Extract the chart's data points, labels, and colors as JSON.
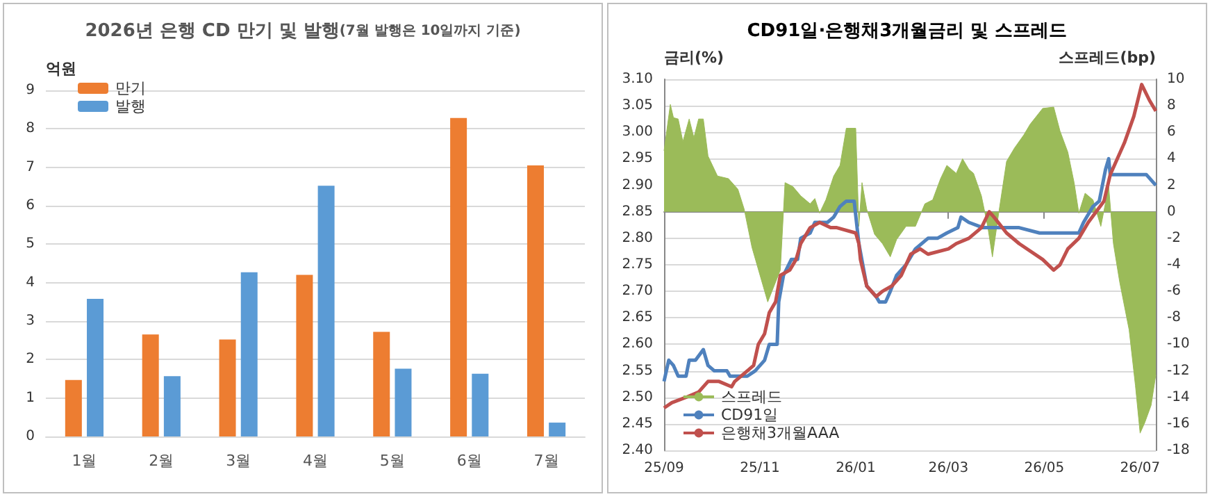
{
  "chart_data": [
    {
      "type": "bar",
      "title": "2026년 은행 CD 만기 및 발행",
      "subtitle": "(7월 발행은 10일까지 기준)",
      "ylabel": "억원",
      "categories": [
        "1월",
        "2월",
        "3월",
        "4월",
        "5월",
        "6월",
        "7월"
      ],
      "series": [
        {
          "name": "만기",
          "color": "#ed7d31",
          "values": [
            1.47,
            2.65,
            2.52,
            4.2,
            2.72,
            8.28,
            7.05
          ]
        },
        {
          "name": "발행",
          "color": "#5b9bd5",
          "values": [
            3.58,
            1.57,
            4.27,
            6.52,
            1.76,
            1.63,
            0.36
          ]
        }
      ],
      "ylim": [
        0,
        9
      ],
      "yticks": [
        0,
        1,
        2,
        3,
        4,
        5,
        6,
        7,
        8,
        9
      ],
      "grid": "y",
      "legend": "top left"
    },
    {
      "type": "line",
      "title": "CD91일·은행채3개월금리 및 스프레드",
      "ylabel": "금리(%)",
      "y2label": "스프레드(bp)",
      "marker": "none",
      "series": [
        {
          "name": "스프레드",
          "type": "area",
          "axis": "y2",
          "color": "#9bbb59",
          "x": [
            "2025-09-01",
            "2025-09-05",
            "2025-09-07",
            "2025-09-10",
            "2025-09-13",
            "2025-09-17",
            "2025-09-20",
            "2025-09-23",
            "2025-09-26",
            "2025-09-29",
            "2025-10-05",
            "2025-10-12",
            "2025-10-18",
            "2025-10-22",
            "2025-10-27",
            "2025-11-06",
            "2025-11-14",
            "2025-11-17",
            "2025-11-22",
            "2025-11-27",
            "2025-12-03",
            "2025-12-06",
            "2025-12-09",
            "2025-12-13",
            "2025-12-18",
            "2025-12-22",
            "2025-12-26",
            "2026-01-01",
            "2026-01-03",
            "2026-01-05",
            "2026-01-08",
            "2026-01-13",
            "2026-01-18",
            "2026-01-23",
            "2026-01-27",
            "2026-02-02",
            "2026-02-08",
            "2026-02-14",
            "2026-02-19",
            "2026-02-24",
            "2026-02-28",
            "2026-03-06",
            "2026-03-10",
            "2026-03-14",
            "2026-03-17",
            "2026-03-22",
            "2026-03-26",
            "2026-03-29",
            "2026-04-02",
            "2026-04-07",
            "2026-04-12",
            "2026-04-18",
            "2026-04-22",
            "2026-04-30",
            "2026-05-07",
            "2026-05-11",
            "2026-05-16",
            "2026-05-20",
            "2026-05-23",
            "2026-05-27",
            "2026-06-01",
            "2026-06-06",
            "2026-06-11",
            "2026-06-14",
            "2026-06-18",
            "2026-06-24",
            "2026-06-28",
            "2026-07-01",
            "2026-07-04",
            "2026-07-08",
            "2026-07-11"
          ],
          "values": [
            4.6,
            8.1,
            7.1,
            7.0,
            5.3,
            7.0,
            5.6,
            7.0,
            7.0,
            4.2,
            2.7,
            2.5,
            1.7,
            0.2,
            -2.7,
            -6.8,
            -4.4,
            2.2,
            1.9,
            1.2,
            0.6,
            1.0,
            -0.1,
            0.9,
            2.7,
            3.5,
            6.3,
            6.3,
            -1.1,
            2.2,
            0.2,
            -1.7,
            -2.4,
            -3.4,
            -2.1,
            -1.1,
            -1.1,
            0.6,
            0.9,
            2.5,
            3.5,
            2.9,
            4.0,
            3.2,
            2.9,
            1.2,
            -1.1,
            -3.4,
            -0.1,
            3.8,
            4.8,
            5.8,
            6.6,
            7.8,
            7.9,
            6.1,
            4.5,
            2.2,
            -0.1,
            1.4,
            0.9,
            -1.1,
            1.9,
            -2.4,
            -5.3,
            -8.9,
            -13.1,
            -16.7,
            -15.9,
            -14.6,
            -12.3
          ]
        },
        {
          "name": "CD91일",
          "color": "#4f81bd",
          "x": [
            "2025-09-01",
            "2025-09-04",
            "2025-09-07",
            "2025-09-10",
            "2025-09-15",
            "2025-09-17",
            "2025-09-21",
            "2025-09-26",
            "2025-09-29",
            "2025-10-03",
            "2025-10-11",
            "2025-10-13",
            "2025-10-24",
            "2025-10-29",
            "2025-11-04",
            "2025-11-07",
            "2025-11-12",
            "2025-11-13",
            "2025-11-16",
            "2025-11-21",
            "2025-11-25",
            "2025-11-27",
            "2025-12-03",
            "2025-12-06",
            "2025-12-14",
            "2025-12-18",
            "2025-12-22",
            "2025-12-26",
            "2025-12-31",
            "2026-01-03",
            "2026-01-08",
            "2026-01-14",
            "2026-01-16",
            "2026-01-20",
            "2026-01-23",
            "2026-01-27",
            "2026-02-02",
            "2026-02-08",
            "2026-02-16",
            "2026-02-22",
            "2026-02-28",
            "2026-03-07",
            "2026-03-09",
            "2026-03-14",
            "2026-03-23",
            "2026-04-15",
            "2026-04-28",
            "2026-05-23",
            "2026-05-26",
            "2026-06-01",
            "2026-06-05",
            "2026-06-09",
            "2026-06-11",
            "2026-06-12",
            "2026-06-18",
            "2026-07-05",
            "2026-07-11"
          ],
          "values": [
            2.53,
            2.57,
            2.56,
            2.54,
            2.54,
            2.57,
            2.57,
            2.59,
            2.56,
            2.55,
            2.55,
            2.54,
            2.54,
            2.55,
            2.57,
            2.6,
            2.6,
            2.68,
            2.73,
            2.76,
            2.76,
            2.8,
            2.81,
            2.83,
            2.83,
            2.84,
            2.86,
            2.87,
            2.87,
            2.79,
            2.71,
            2.69,
            2.68,
            2.68,
            2.7,
            2.73,
            2.75,
            2.78,
            2.8,
            2.8,
            2.81,
            2.82,
            2.84,
            2.83,
            2.82,
            2.82,
            2.81,
            2.81,
            2.83,
            2.86,
            2.87,
            2.93,
            2.95,
            2.92,
            2.92,
            2.92,
            2.9
          ]
        },
        {
          "name": "은행채3개월AAA",
          "color": "#c0504d",
          "x": [
            "2025-09-01",
            "2025-09-06",
            "2025-09-15",
            "2025-09-23",
            "2025-09-29",
            "2025-10-06",
            "2025-10-14",
            "2025-10-16",
            "2025-10-24",
            "2025-10-28",
            "2025-10-31",
            "2025-11-04",
            "2025-11-07",
            "2025-11-11",
            "2025-11-14",
            "2025-11-20",
            "2025-11-24",
            "2025-11-27",
            "2025-12-03",
            "2025-12-09",
            "2025-12-16",
            "2025-12-20",
            "2026-01-01",
            "2026-01-03",
            "2026-01-04",
            "2026-01-08",
            "2026-01-14",
            "2026-01-18",
            "2026-01-24",
            "2026-01-30",
            "2026-02-05",
            "2026-02-11",
            "2026-02-16",
            "2026-03-01",
            "2026-03-06",
            "2026-03-14",
            "2026-03-22",
            "2026-03-27",
            "2026-03-30",
            "2026-04-07",
            "2026-04-15",
            "2026-04-30",
            "2026-05-07",
            "2026-05-11",
            "2026-05-16",
            "2026-05-23",
            "2026-05-29",
            "2026-06-08",
            "2026-06-12",
            "2026-06-21",
            "2026-06-27",
            "2026-07-02",
            "2026-07-07",
            "2026-07-11"
          ],
          "values": [
            2.48,
            2.49,
            2.5,
            2.51,
            2.53,
            2.53,
            2.52,
            2.53,
            2.55,
            2.56,
            2.6,
            2.62,
            2.66,
            2.68,
            2.73,
            2.74,
            2.76,
            2.79,
            2.82,
            2.83,
            2.82,
            2.82,
            2.81,
            2.79,
            2.76,
            2.71,
            2.69,
            2.7,
            2.71,
            2.73,
            2.77,
            2.78,
            2.77,
            2.78,
            2.79,
            2.8,
            2.82,
            2.85,
            2.84,
            2.81,
            2.79,
            2.76,
            2.74,
            2.75,
            2.78,
            2.8,
            2.83,
            2.87,
            2.92,
            2.98,
            3.03,
            3.09,
            3.06,
            3.04
          ]
        }
      ],
      "xlim": [
        "2025-09-01",
        "2026-07-11"
      ],
      "xticks": [
        {
          "value": "2025-09-01",
          "label": "25/09"
        },
        {
          "value": "2025-11-01",
          "label": "25/11"
        },
        {
          "value": "2026-01-01",
          "label": "26/01"
        },
        {
          "value": "2026-03-01",
          "label": "26/03"
        },
        {
          "value": "2026-05-01",
          "label": "26/05"
        },
        {
          "value": "2026-07-01",
          "label": "26/07"
        }
      ],
      "ylim": [
        2.4,
        3.1
      ],
      "yticks": [
        {
          "value": 2.4,
          "label": "2.40"
        },
        {
          "value": 2.45,
          "label": "2.45"
        },
        {
          "value": 2.5,
          "label": "2.50"
        },
        {
          "value": 2.55,
          "label": "2.55"
        },
        {
          "value": 2.6,
          "label": "2.60"
        },
        {
          "value": 2.65,
          "label": "2.65"
        },
        {
          "value": 2.7,
          "label": "2.70"
        },
        {
          "value": 2.75,
          "label": "2.75"
        },
        {
          "value": 2.8,
          "label": "2.80"
        },
        {
          "value": 2.85,
          "label": "2.85"
        },
        {
          "value": 2.9,
          "label": "2.90"
        },
        {
          "value": 2.95,
          "label": "2.95"
        },
        {
          "value": 3.0,
          "label": "3.00"
        },
        {
          "value": 3.05,
          "label": "3.05"
        },
        {
          "value": 3.1,
          "label": "3.10"
        }
      ],
      "y2lim": [
        -18,
        10
      ],
      "y2ticks": [
        -18,
        -16,
        -14,
        -12,
        -10,
        -8,
        -6,
        -4,
        -2,
        0,
        2,
        4,
        6,
        8,
        10
      ],
      "grid": "y",
      "legend": "bottom left"
    }
  ]
}
